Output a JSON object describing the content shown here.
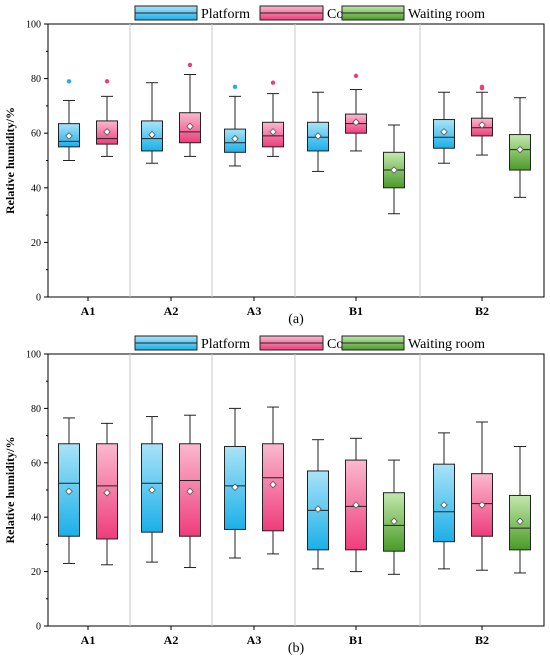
{
  "chart_data": [
    {
      "type": "box",
      "panel_label": "(a)",
      "ylabel": "Relative humidity/%",
      "ylim": [
        0,
        100
      ],
      "y_ticks": [
        0,
        20,
        40,
        60,
        80,
        100
      ],
      "grid": false,
      "legend_position": "top-center",
      "categories": [
        "A1",
        "A2",
        "A3",
        "B1",
        "B2"
      ],
      "series": [
        {
          "name": "Platform",
          "color": "#1bb0e8",
          "boxes": [
            {
              "category": "A1",
              "min": 50,
              "q1": 55,
              "median": 57,
              "q3": 63.5,
              "max": 72,
              "mean": 59,
              "outliers": [
                79
              ]
            },
            {
              "category": "A2",
              "min": 49,
              "q1": 53.5,
              "median": 58,
              "q3": 64.5,
              "max": 78.5,
              "mean": 59.5,
              "outliers": []
            },
            {
              "category": "A3",
              "min": 48,
              "q1": 53,
              "median": 56.5,
              "q3": 61.5,
              "max": 73.5,
              "mean": 58,
              "outliers": [
                77
              ]
            },
            {
              "category": "B1",
              "min": 46,
              "q1": 53.5,
              "median": 58.5,
              "q3": 64,
              "max": 75,
              "mean": 59,
              "outliers": []
            },
            {
              "category": "B2",
              "min": 49,
              "q1": 54.5,
              "median": 58.5,
              "q3": 65,
              "max": 75,
              "mean": 60.5,
              "outliers": []
            }
          ]
        },
        {
          "name": "Concourse",
          "color": "#ee3d7b",
          "boxes": [
            {
              "category": "A1",
              "min": 51.5,
              "q1": 56,
              "median": 58,
              "q3": 64.5,
              "max": 73.5,
              "mean": 60.5,
              "outliers": [
                79
              ]
            },
            {
              "category": "A2",
              "min": 51.5,
              "q1": 56.5,
              "median": 60.5,
              "q3": 67.5,
              "max": 81.5,
              "mean": 62.5,
              "outliers": [
                85
              ]
            },
            {
              "category": "A3",
              "min": 51.5,
              "q1": 55,
              "median": 59,
              "q3": 64,
              "max": 74.5,
              "mean": 60.5,
              "outliers": [
                78.5
              ]
            },
            {
              "category": "B1",
              "min": 53.5,
              "q1": 60,
              "median": 63.5,
              "q3": 67,
              "max": 76,
              "mean": 64,
              "outliers": [
                81
              ]
            },
            {
              "category": "B2",
              "min": 52,
              "q1": 59,
              "median": 62,
              "q3": 65.5,
              "max": 75,
              "mean": 63,
              "outliers": [
                76.5,
                77
              ]
            }
          ]
        },
        {
          "name": "Waiting room",
          "color": "#5aa832",
          "boxes": [
            {
              "category": "B1",
              "min": 30.5,
              "q1": 40,
              "median": 46.5,
              "q3": 53,
              "max": 63,
              "mean": 46.5,
              "outliers": []
            },
            {
              "category": "B2",
              "min": 36.5,
              "q1": 46.5,
              "median": 54,
              "q3": 59.5,
              "max": 73,
              "mean": 54,
              "outliers": []
            }
          ]
        }
      ]
    },
    {
      "type": "box",
      "panel_label": "(b)",
      "ylabel": "Relative humidity/%",
      "ylim": [
        0,
        100
      ],
      "y_ticks": [
        0,
        20,
        40,
        60,
        80,
        100
      ],
      "grid": false,
      "legend_position": "top-center",
      "categories": [
        "A1",
        "A2",
        "A3",
        "B1",
        "B2"
      ],
      "series": [
        {
          "name": "Platform",
          "color": "#1bb0e8",
          "boxes": [
            {
              "category": "A1",
              "min": 23,
              "q1": 33,
              "median": 52.5,
              "q3": 67,
              "max": 76.5,
              "mean": 49.5,
              "outliers": []
            },
            {
              "category": "A2",
              "min": 23.5,
              "q1": 34.5,
              "median": 52.5,
              "q3": 67,
              "max": 77,
              "mean": 50,
              "outliers": []
            },
            {
              "category": "A3",
              "min": 25,
              "q1": 35.5,
              "median": 51.5,
              "q3": 66,
              "max": 80,
              "mean": 51,
              "outliers": []
            },
            {
              "category": "B1",
              "min": 21,
              "q1": 28,
              "median": 42.5,
              "q3": 57,
              "max": 68.5,
              "mean": 43,
              "outliers": []
            },
            {
              "category": "B2",
              "min": 21,
              "q1": 31,
              "median": 42,
              "q3": 59.5,
              "max": 71,
              "mean": 44.5,
              "outliers": []
            }
          ]
        },
        {
          "name": "Concourse",
          "color": "#ee3d7b",
          "boxes": [
            {
              "category": "A1",
              "min": 22.5,
              "q1": 32,
              "median": 51.5,
              "q3": 67,
              "max": 74.5,
              "mean": 49,
              "outliers": []
            },
            {
              "category": "A2",
              "min": 21.5,
              "q1": 33,
              "median": 53.5,
              "q3": 67,
              "max": 77.5,
              "mean": 49.5,
              "outliers": []
            },
            {
              "category": "A3",
              "min": 26.5,
              "q1": 35,
              "median": 54.5,
              "q3": 67,
              "max": 80.5,
              "mean": 52,
              "outliers": []
            },
            {
              "category": "B1",
              "min": 20,
              "q1": 28,
              "median": 44,
              "q3": 61,
              "max": 69,
              "mean": 44.5,
              "outliers": []
            },
            {
              "category": "B2",
              "min": 20.5,
              "q1": 33,
              "median": 45,
              "q3": 56,
              "max": 75,
              "mean": 44.5,
              "outliers": []
            }
          ]
        },
        {
          "name": "Waiting room",
          "color": "#5aa832",
          "boxes": [
            {
              "category": "B1",
              "min": 19,
              "q1": 27.5,
              "median": 37,
              "q3": 49,
              "max": 61,
              "mean": 38.5,
              "outliers": []
            },
            {
              "category": "B2",
              "min": 19.5,
              "q1": 28,
              "median": 36,
              "q3": 48,
              "max": 66,
              "mean": 38.5,
              "outliers": []
            }
          ]
        }
      ]
    }
  ]
}
